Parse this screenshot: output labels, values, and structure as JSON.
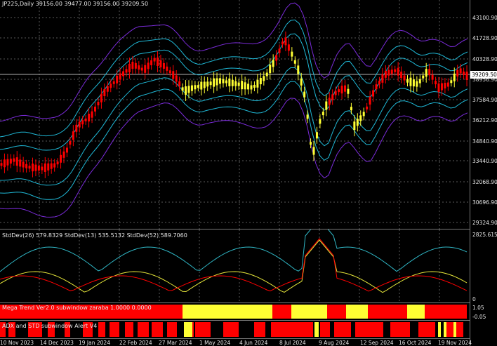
{
  "header": {
    "symbol_line": "JP225,Daily  39156.00 39477.00 39156.00 39209.50"
  },
  "price_axis": [
    "43100.90",
    "41728.90",
    "40328.90",
    "38956.90",
    "37584.90",
    "36212.90",
    "34840.90",
    "33440.90",
    "32068.90",
    "30696.90",
    "29324.90"
  ],
  "current_price": "39209.50",
  "std_pane": {
    "title": "StdDev(26) 579.8329  StdDev(13) 535.5132  StdDev(52) 589.7060",
    "axis_top": "2825.6159",
    "axis_bottom": "0"
  },
  "mega_pane": {
    "title": "Mega Trend Ver2.0 subwindow zaraba 1.0000 0.0000",
    "axis_top": "1.05",
    "axis_bottom": "-0.05"
  },
  "adx_pane": {
    "title": "ADX and STD subwindow Alert V4"
  },
  "dates": [
    "10 Nov 2023",
    "14 Dec 2023",
    "19 Jan 2024",
    "22 Feb 2024",
    "27 Mar 2024",
    "1 May 2024",
    "4 Jun 2024",
    "8 Jul 2024",
    "9 Aug 2024",
    "12 Sep 2024",
    "16 Oct 2024",
    "19 Nov 2024"
  ],
  "colors": {
    "bull": "#ff0000",
    "bear_yellow": "#ffff33",
    "band_outer": "#7a2bd9",
    "band_mid": "#1fb8d6",
    "std_red": "#ff0000",
    "std_yellow": "#e6e63a",
    "std_cyan": "#2fb5c4"
  }
}
